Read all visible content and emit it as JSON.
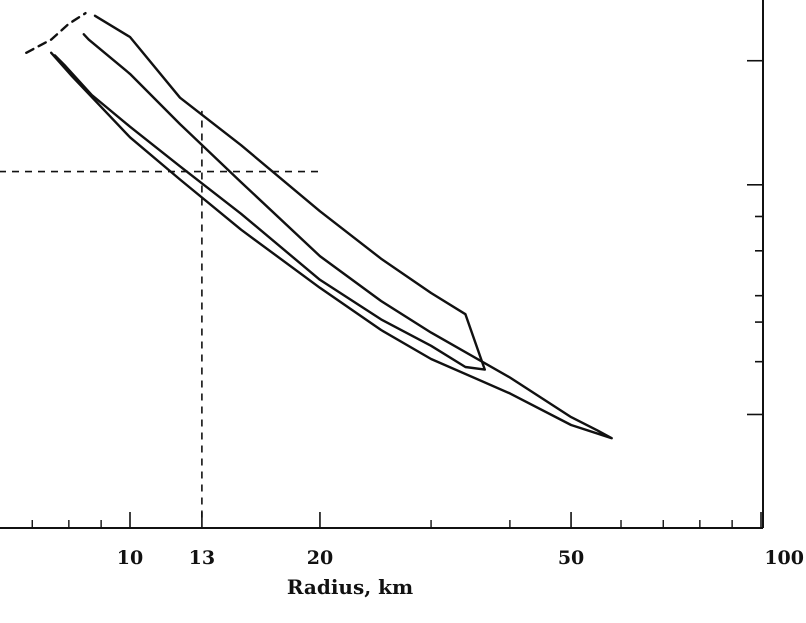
{
  "chart_data": {
    "type": "line",
    "title": "",
    "xlabel": "Radius, km",
    "ylabel": "",
    "x_scale": "log",
    "xlim": [
      6.2,
      100
    ],
    "x_ticks": [
      10,
      13,
      20,
      50,
      100
    ],
    "series": [
      {
        "style": "solid",
        "points": [
          [
            8.8,
            0.97
          ],
          [
            10,
            0.93
          ],
          [
            12,
            0.815
          ],
          [
            15,
            0.725
          ],
          [
            20,
            0.6
          ],
          [
            25,
            0.51
          ],
          [
            30,
            0.445
          ],
          [
            34,
            0.405
          ],
          [
            36.5,
            0.3
          ],
          [
            34,
            0.305
          ],
          [
            30,
            0.345
          ],
          [
            25,
            0.395
          ],
          [
            20,
            0.47
          ],
          [
            15,
            0.595
          ],
          [
            12,
            0.685
          ],
          [
            10,
            0.76
          ],
          [
            8.7,
            0.82
          ],
          [
            7.9,
            0.875
          ],
          [
            7.6,
            0.895
          ]
        ]
      },
      {
        "style": "solid",
        "points": [
          [
            7.5,
            0.9
          ],
          [
            8.1,
            0.855
          ],
          [
            10,
            0.74
          ],
          [
            12,
            0.66
          ],
          [
            15,
            0.565
          ],
          [
            20,
            0.455
          ],
          [
            25,
            0.375
          ],
          [
            30,
            0.32
          ],
          [
            40,
            0.255
          ],
          [
            50,
            0.195
          ],
          [
            58,
            0.17
          ],
          [
            55,
            0.185
          ],
          [
            50,
            0.21
          ],
          [
            40,
            0.285
          ],
          [
            30,
            0.37
          ],
          [
            25,
            0.43
          ],
          [
            20,
            0.515
          ],
          [
            15,
            0.655
          ],
          [
            12,
            0.765
          ],
          [
            10,
            0.86
          ],
          [
            8.6,
            0.925
          ],
          [
            8.45,
            0.935
          ]
        ]
      },
      {
        "style": "dashed",
        "points": [
          [
            6.85,
            0.9
          ],
          [
            7.5,
            0.925
          ],
          [
            8.0,
            0.955
          ],
          [
            8.5,
            0.975
          ]
        ]
      }
    ],
    "reference_lines": [
      {
        "orientation": "vertical",
        "x": 13,
        "y_from": 0.02,
        "y_to": 0.79
      },
      {
        "orientation": "horizontal",
        "y": 0.675,
        "x_from": 6.2,
        "x_to": 20
      }
    ],
    "right_axis_ticks": [
      {
        "y": 0.885,
        "size": "major"
      },
      {
        "y": 0.65,
        "size": "major"
      },
      {
        "y": 0.59,
        "size": "minor"
      },
      {
        "y": 0.525,
        "size": "minor"
      },
      {
        "y": 0.44,
        "size": "minor"
      },
      {
        "y": 0.39,
        "size": "minor"
      },
      {
        "y": 0.315,
        "size": "minor"
      },
      {
        "y": 0.215,
        "size": "major"
      }
    ],
    "x_minor_ticks": [
      7,
      8,
      9,
      30,
      40,
      60,
      70,
      80,
      90
    ],
    "grid": false
  }
}
